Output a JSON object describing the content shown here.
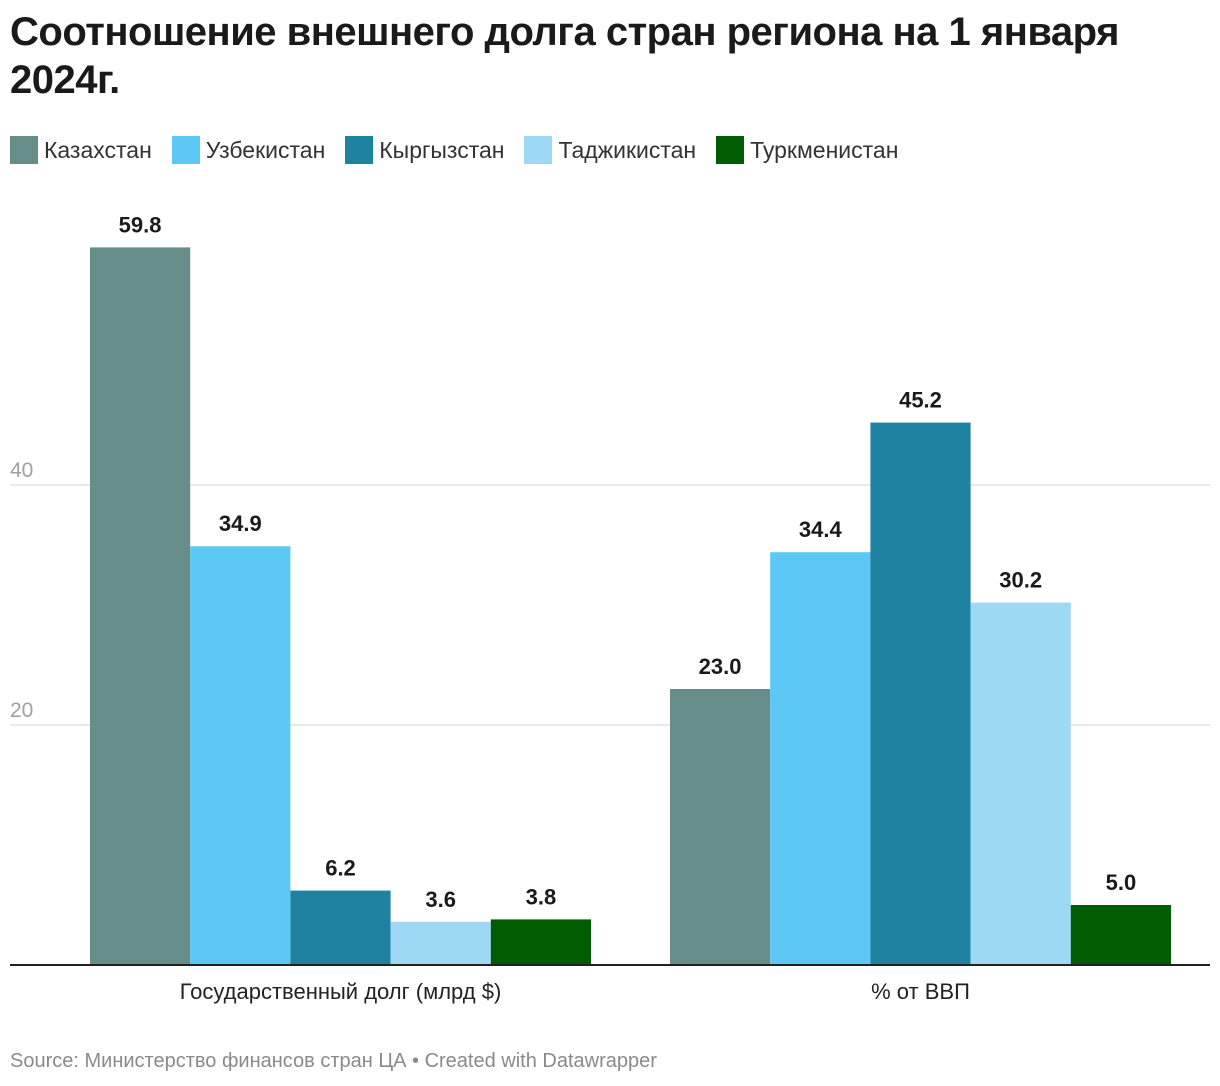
{
  "title": "Соотношение внешнего долга стран региона на 1 января 2024г.",
  "legend": [
    {
      "label": "Казахстан",
      "color": "#668d88"
    },
    {
      "label": "Узбекистан",
      "color": "#5dc8f6"
    },
    {
      "label": "Кыргызстан",
      "color": "#1f82a1"
    },
    {
      "label": "Таджикистан",
      "color": "#9dd8f5"
    },
    {
      "label": "Туркменистан",
      "color": "#005c00"
    }
  ],
  "chart_data": {
    "type": "bar",
    "title": "Соотношение внешнего долга стран региона на 1 января 2024г.",
    "categories": [
      "Государственный долг (млрд $)",
      "% от ВВП"
    ],
    "series": [
      {
        "name": "Казахстан",
        "values": [
          59.8,
          23.0
        ],
        "labels": [
          "59.8",
          "23.0"
        ]
      },
      {
        "name": "Узбекистан",
        "values": [
          34.9,
          34.4
        ],
        "labels": [
          "34.9",
          "34.4"
        ]
      },
      {
        "name": "Кыргызстан",
        "values": [
          6.2,
          45.2
        ],
        "labels": [
          "6.2",
          "45.2"
        ]
      },
      {
        "name": "Таджикистан",
        "values": [
          3.6,
          30.2
        ],
        "labels": [
          "3.6",
          "30.2"
        ]
      },
      {
        "name": "Туркменистан",
        "values": [
          3.8,
          5.0
        ],
        "labels": [
          "3.8",
          "5.0"
        ]
      }
    ],
    "yticks": [
      20,
      40
    ],
    "ytick_labels": [
      "20",
      "40"
    ],
    "ylim": [
      0,
      60
    ],
    "grid": true,
    "legend_position": "top-left",
    "xlabel": "",
    "ylabel": ""
  },
  "footer": "Source: Министерство финансов стран ЦА • Created with Datawrapper"
}
